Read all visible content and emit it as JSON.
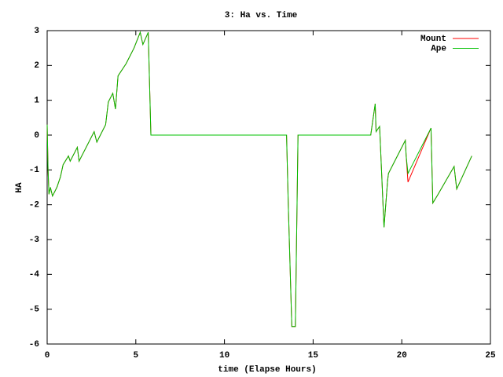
{
  "chart_data": {
    "type": "line",
    "title": "3: Ha vs. Time",
    "x_label": "time (Elapse Hours)",
    "y_label": "HA",
    "x": [
      0,
      0.05,
      0.1,
      0.18,
      0.3,
      0.55,
      0.75,
      0.9,
      1.2,
      1.3,
      1.7,
      1.8,
      2.65,
      2.8,
      3.3,
      3.45,
      3.7,
      3.85,
      4.0,
      4.45,
      4.9,
      5.25,
      5.4,
      5.7,
      5.85,
      13.5,
      13.6,
      13.8,
      14.0,
      14.15,
      18.25,
      18.5,
      18.55,
      18.75,
      19.0,
      19.2,
      19.25,
      20.2,
      20.25,
      20.35,
      21.65,
      21.75,
      22.05,
      22.95,
      23.1,
      23.95
    ],
    "series": [
      {
        "name": "Mount",
        "color": "#ff0000",
        "values": [
          0.3,
          -0.97,
          -1.7,
          -1.5,
          -1.75,
          -1.5,
          -1.2,
          -0.85,
          -0.6,
          -0.75,
          -0.35,
          -0.75,
          0.1,
          -0.2,
          0.3,
          0.95,
          1.2,
          0.75,
          1.7,
          2.05,
          2.5,
          2.95,
          2.6,
          2.95,
          0,
          0,
          -2,
          -5.5,
          -5.5,
          0,
          0,
          0.9,
          0.1,
          0.25,
          -2.65,
          -1.3,
          -1.1,
          -0.15,
          -0.6,
          -1.35,
          0.2,
          -1.95,
          -1.7,
          -0.9,
          -1.55,
          -0.6
        ]
      },
      {
        "name": "Ape",
        "color": "#00c000",
        "values": [
          0.3,
          -0.97,
          -1.7,
          -1.5,
          -1.75,
          -1.5,
          -1.2,
          -0.85,
          -0.6,
          -0.75,
          -0.35,
          -0.75,
          0.1,
          -0.2,
          0.3,
          0.95,
          1.2,
          0.75,
          1.7,
          2.05,
          2.5,
          2.95,
          2.6,
          2.95,
          0,
          0,
          -2,
          -5.5,
          -5.5,
          0,
          0,
          0.9,
          0.1,
          0.25,
          -2.65,
          -1.3,
          -1.1,
          -0.15,
          -0.6,
          -1.1,
          0.2,
          -1.95,
          -1.7,
          -0.9,
          -1.55,
          -0.6
        ]
      }
    ],
    "xlim": [
      0,
      25
    ],
    "xticks": [
      0,
      5,
      10,
      15,
      20,
      25
    ],
    "ylim": [
      -6,
      3
    ],
    "yticks": [
      -6,
      -5,
      -4,
      -3,
      -2,
      -1,
      0,
      1,
      2,
      3
    ],
    "legend": "top-right"
  }
}
